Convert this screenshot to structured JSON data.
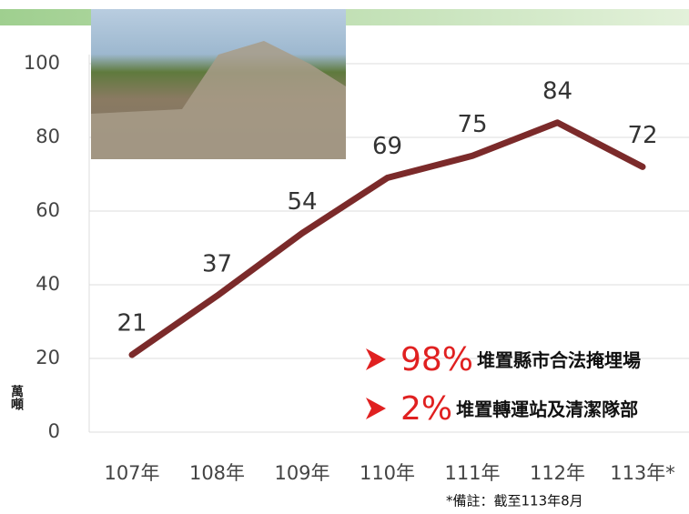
{
  "chart_data": {
    "type": "line",
    "categories": [
      "107年",
      "108年",
      "109年",
      "110年",
      "111年",
      "112年",
      "113年*"
    ],
    "values": [
      21,
      37,
      54,
      69,
      75,
      84,
      72
    ],
    "color": "#7b2a2a",
    "y_label": "萬噸",
    "ylim": [
      0,
      100
    ],
    "yticks": [
      0,
      20,
      40,
      60,
      80,
      100
    ],
    "grid": true,
    "annotations": [
      {
        "percent": "98%",
        "text": "堆置縣市合法掩埋場"
      },
      {
        "percent": "2%",
        "text": "堆置轉運站及清潔隊部"
      }
    ],
    "footnote": "*備註：截至113年8月"
  }
}
